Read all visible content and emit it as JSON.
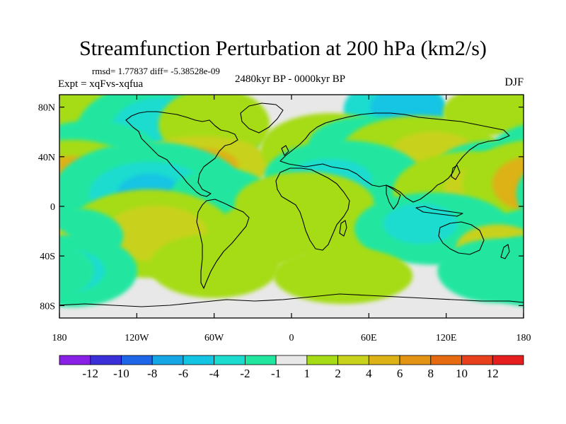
{
  "title": "Streamfunction Perturbation at 200 hPa (km2/s)",
  "stats_text": "rmsd= 1.77837  diff= -5.38528e-09",
  "experiment_text": "Expt = xqFvs-xqfua",
  "period_text": "2480kyr BP - 0000kyr BP",
  "season_text": "DJF",
  "map": {
    "background_color": "#e8e8e8",
    "y_tick_labels": [
      "80N",
      "40N",
      "0",
      "40S",
      "80S"
    ],
    "y_tick_values": [
      80,
      40,
      0,
      -40,
      -80
    ],
    "x_tick_labels": [
      "180",
      "120W",
      "60W",
      "0",
      "60E",
      "120E",
      "180"
    ],
    "x_tick_values": [
      -180,
      -120,
      -60,
      0,
      60,
      120,
      180
    ]
  },
  "colorbar": {
    "colors": [
      "#8a20e6",
      "#3b2fd8",
      "#1e66e8",
      "#15a6e6",
      "#14c4e3",
      "#1cdcd0",
      "#20e6a0",
      "#e8e8e8",
      "#a6dc16",
      "#c8d21a",
      "#dcb216",
      "#e29412",
      "#e66a10",
      "#e8401a",
      "#e61e1e"
    ],
    "labels": [
      "-12",
      "-10",
      "-8",
      "-6",
      "-4",
      "-2",
      "-1",
      "1",
      "2",
      "4",
      "6",
      "8",
      "10",
      "12"
    ]
  },
  "field_anomalies": [
    {
      "lon": 80,
      "lat": 78,
      "rx": 0.22,
      "ry": 0.16,
      "level": "-4"
    },
    {
      "lon": 90,
      "lat": 80,
      "rx": 0.16,
      "ry": 0.1,
      "level": "-6"
    },
    {
      "lon": -160,
      "lat": 76,
      "rx": 0.28,
      "ry": 0.14,
      "level": "2"
    },
    {
      "lon": 150,
      "lat": 76,
      "rx": 0.18,
      "ry": 0.12,
      "level": "2"
    },
    {
      "lon": -95,
      "lat": 60,
      "rx": 0.4,
      "ry": 0.26,
      "level": "-2"
    },
    {
      "lon": -100,
      "lat": 62,
      "rx": 0.22,
      "ry": 0.16,
      "level": "-4"
    },
    {
      "lon": -60,
      "lat": 66,
      "rx": 0.24,
      "ry": 0.18,
      "level": "2"
    },
    {
      "lon": -155,
      "lat": 40,
      "rx": 0.3,
      "ry": 0.18,
      "level": "-2"
    },
    {
      "lon": -70,
      "lat": 34,
      "rx": 0.3,
      "ry": 0.14,
      "level": "4"
    },
    {
      "lon": -70,
      "lat": 34,
      "rx": 0.16,
      "ry": 0.08,
      "level": "6"
    },
    {
      "lon": 30,
      "lat": 46,
      "rx": 0.3,
      "ry": 0.18,
      "level": "2"
    },
    {
      "lon": 60,
      "lat": 50,
      "rx": 0.26,
      "ry": 0.14,
      "level": "-2"
    },
    {
      "lon": 100,
      "lat": 44,
      "rx": 0.34,
      "ry": 0.18,
      "level": "2"
    },
    {
      "lon": 110,
      "lat": 44,
      "rx": 0.18,
      "ry": 0.1,
      "level": "4"
    },
    {
      "lon": 155,
      "lat": 30,
      "rx": 0.24,
      "ry": 0.14,
      "level": "-2"
    },
    {
      "lon": 40,
      "lat": 24,
      "rx": 0.34,
      "ry": 0.18,
      "level": "-2"
    },
    {
      "lon": 30,
      "lat": 22,
      "rx": 0.18,
      "ry": 0.1,
      "level": "-4"
    },
    {
      "lon": 140,
      "lat": 12,
      "rx": 0.34,
      "ry": 0.2,
      "level": "2"
    },
    {
      "lon": 150,
      "lat": 12,
      "rx": 0.18,
      "ry": 0.12,
      "level": "4"
    },
    {
      "lon": -170,
      "lat": 18,
      "rx": 0.32,
      "ry": 0.22,
      "level": "2"
    },
    {
      "lon": -172,
      "lat": 18,
      "rx": 0.18,
      "ry": 0.14,
      "level": "6"
    },
    {
      "lon": -110,
      "lat": 10,
      "rx": 0.42,
      "ry": 0.26,
      "level": "-2"
    },
    {
      "lon": -110,
      "lat": 10,
      "rx": 0.26,
      "ry": 0.16,
      "level": "-4"
    },
    {
      "lon": -110,
      "lat": 10,
      "rx": 0.14,
      "ry": 0.1,
      "level": "-6"
    },
    {
      "lon": -55,
      "lat": 8,
      "rx": 0.22,
      "ry": 0.14,
      "level": "-2"
    },
    {
      "lon": 10,
      "lat": 2,
      "rx": 0.3,
      "ry": 0.16,
      "level": "2"
    },
    {
      "lon": -110,
      "lat": -22,
      "rx": 0.36,
      "ry": 0.22,
      "level": "2"
    },
    {
      "lon": -105,
      "lat": -22,
      "rx": 0.22,
      "ry": 0.14,
      "level": "4"
    },
    {
      "lon": -170,
      "lat": -24,
      "rx": 0.22,
      "ry": 0.14,
      "level": "-2"
    },
    {
      "lon": -20,
      "lat": -22,
      "rx": 0.22,
      "ry": 0.16,
      "level": "2"
    },
    {
      "lon": 50,
      "lat": -24,
      "rx": 0.28,
      "ry": 0.16,
      "level": "2"
    },
    {
      "lon": 110,
      "lat": -18,
      "rx": 0.34,
      "ry": 0.18,
      "level": "-2"
    },
    {
      "lon": 100,
      "lat": -14,
      "rx": 0.16,
      "ry": 0.1,
      "level": "-4"
    },
    {
      "lon": 160,
      "lat": -34,
      "rx": 0.18,
      "ry": 0.12,
      "level": "4"
    },
    {
      "lon": -60,
      "lat": -48,
      "rx": 0.28,
      "ry": 0.16,
      "level": "2"
    },
    {
      "lon": -170,
      "lat": -52,
      "rx": 0.28,
      "ry": 0.18,
      "level": "-2"
    },
    {
      "lon": -170,
      "lat": -52,
      "rx": 0.14,
      "ry": 0.1,
      "level": "-4"
    },
    {
      "lon": 160,
      "lat": -52,
      "rx": 0.26,
      "ry": 0.16,
      "level": "-2"
    },
    {
      "lon": 40,
      "lat": -56,
      "rx": 0.3,
      "ry": 0.14,
      "level": "2"
    }
  ]
}
